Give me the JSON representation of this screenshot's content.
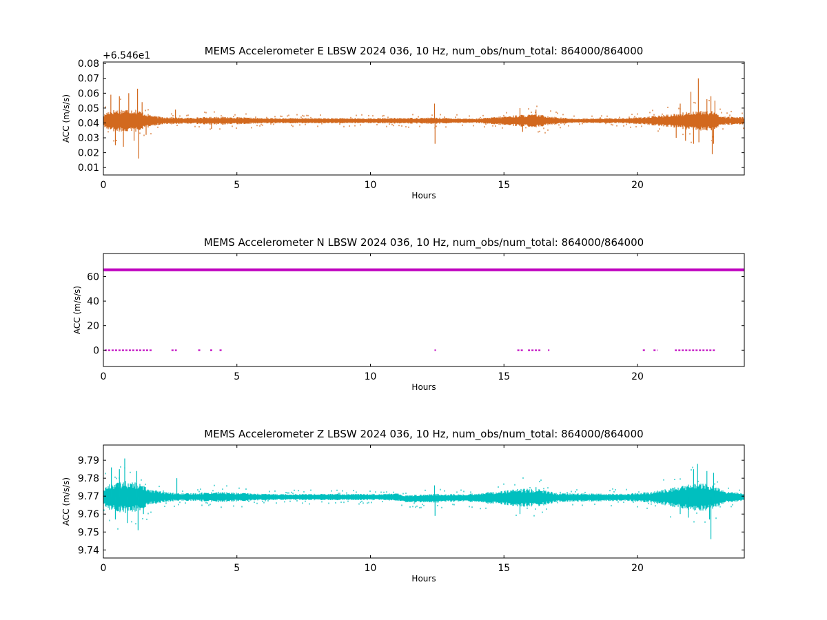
{
  "figure": {
    "background": "#ffffff"
  },
  "chart_data": [
    {
      "type": "scatter",
      "title": "MEMS Accelerometer E LBSW 2024 036, 10 Hz, num_obs/num_total: 864000/864000",
      "xlabel": "Hours",
      "ylabel": "ACC (m/s/s)",
      "offset_text": "+6.546e1",
      "xlim": [
        0,
        24
      ],
      "ylim": [
        0.005,
        0.081
      ],
      "xticks": [
        0,
        5,
        10,
        15,
        20
      ],
      "yticks": [
        0.01,
        0.02,
        0.03,
        0.04,
        0.05,
        0.06,
        0.07,
        0.08
      ],
      "color": "#d2691e",
      "series": [
        {
          "baseline": 0.0415,
          "band_halfwidth": [
            [
              0,
              0.004
            ],
            [
              0.2,
              0.007
            ],
            [
              0.6,
              0.008
            ],
            [
              1.2,
              0.008
            ],
            [
              1.6,
              0.005
            ],
            [
              2.0,
              0.003
            ],
            [
              3.0,
              0.002
            ],
            [
              4.3,
              0.0028
            ],
            [
              6.0,
              0.0018
            ],
            [
              8.0,
              0.0018
            ],
            [
              10.0,
              0.0017
            ],
            [
              12.4,
              0.0022
            ],
            [
              13.0,
              0.0018
            ],
            [
              14.0,
              0.0015
            ],
            [
              15.6,
              0.004
            ],
            [
              16.2,
              0.0045
            ],
            [
              16.8,
              0.003
            ],
            [
              17.5,
              0.0015
            ],
            [
              19.5,
              0.0018
            ],
            [
              20.5,
              0.003
            ],
            [
              21.5,
              0.005
            ],
            [
              22.2,
              0.007
            ],
            [
              22.8,
              0.0065
            ],
            [
              23.2,
              0.003
            ],
            [
              24,
              0.0025
            ]
          ],
          "spikes": [
            [
              0.28,
              0.059
            ],
            [
              0.45,
              0.025
            ],
            [
              0.6,
              0.058
            ],
            [
              0.75,
              0.024
            ],
            [
              0.95,
              0.06
            ],
            [
              1.15,
              0.028
            ],
            [
              1.28,
              0.063
            ],
            [
              1.32,
              0.016
            ],
            [
              1.45,
              0.054
            ],
            [
              1.6,
              0.032
            ],
            [
              2.7,
              0.049
            ],
            [
              4.05,
              0.036
            ],
            [
              12.4,
              0.053
            ],
            [
              12.42,
              0.026
            ],
            [
              15.6,
              0.05
            ],
            [
              15.7,
              0.034
            ],
            [
              16.2,
              0.049
            ],
            [
              21.45,
              0.03
            ],
            [
              21.6,
              0.053
            ],
            [
              21.8,
              0.028
            ],
            [
              22.0,
              0.061
            ],
            [
              22.1,
              0.026
            ],
            [
              22.28,
              0.07
            ],
            [
              22.3,
              0.027
            ],
            [
              22.6,
              0.056
            ],
            [
              22.75,
              0.058
            ],
            [
              22.8,
              0.019
            ],
            [
              22.9,
              0.055
            ],
            [
              22.85,
              0.026
            ]
          ]
        }
      ]
    },
    {
      "type": "scatter",
      "title": "MEMS Accelerometer N LBSW 2024 036, 10 Hz, num_obs/num_total: 864000/864000",
      "xlabel": "Hours",
      "ylabel": "ACC (m/s/s)",
      "xlim": [
        0,
        24
      ],
      "ylim": [
        -13.3,
        78.8
      ],
      "xticks": [
        0,
        5,
        10,
        15,
        20
      ],
      "yticks": [
        0,
        20,
        40,
        60
      ],
      "color": "#bf00bf",
      "series": [
        {
          "main_level": 65.5,
          "drop_level": 0,
          "drop_segments": [
            [
              0.05,
              1.85
            ],
            [
              2.55,
              2.75
            ],
            [
              3.55,
              3.65
            ],
            [
              4.0,
              4.1
            ],
            [
              4.35,
              4.45
            ],
            [
              12.4,
              12.45
            ],
            [
              15.5,
              15.75
            ],
            [
              15.9,
              16.4
            ],
            [
              16.65,
              16.7
            ],
            [
              20.2,
              20.3
            ],
            [
              20.6,
              20.75
            ],
            [
              21.4,
              22.9
            ]
          ]
        }
      ]
    },
    {
      "type": "scatter",
      "title": "MEMS Accelerometer Z LBSW 2024 036, 10 Hz, num_obs/num_total: 864000/864000",
      "xlabel": "Hours",
      "ylabel": "ACC (m/s/s)",
      "xlim": [
        0,
        24
      ],
      "ylim": [
        9.7355,
        9.7985
      ],
      "xticks": [
        0,
        5,
        10,
        15,
        20
      ],
      "yticks": [
        9.74,
        9.75,
        9.76,
        9.77,
        9.78,
        9.79
      ],
      "color": "#00bfbf",
      "series": [
        {
          "baseline_points": [
            [
              0,
              9.7695
            ],
            [
              11.0,
              9.7695
            ],
            [
              11.3,
              9.7685
            ],
            [
              13.0,
              9.769
            ],
            [
              24,
              9.7695
            ]
          ],
          "band_halfwidth": [
            [
              0,
              0.005
            ],
            [
              0.3,
              0.008
            ],
            [
              0.8,
              0.009
            ],
            [
              1.3,
              0.008
            ],
            [
              1.7,
              0.005
            ],
            [
              2.2,
              0.003
            ],
            [
              3.0,
              0.002
            ],
            [
              4.2,
              0.003
            ],
            [
              6.0,
              0.0018
            ],
            [
              8.0,
              0.0018
            ],
            [
              10.0,
              0.0018
            ],
            [
              12.4,
              0.0025
            ],
            [
              13.5,
              0.002
            ],
            [
              15.6,
              0.005
            ],
            [
              16.3,
              0.005
            ],
            [
              17.0,
              0.0025
            ],
            [
              19.5,
              0.002
            ],
            [
              20.5,
              0.003
            ],
            [
              21.5,
              0.006
            ],
            [
              22.2,
              0.008
            ],
            [
              22.8,
              0.007
            ],
            [
              23.3,
              0.003
            ],
            [
              24,
              0.0025
            ]
          ],
          "spikes": [
            [
              0.3,
              9.786
            ],
            [
              0.45,
              9.757
            ],
            [
              0.6,
              9.785
            ],
            [
              0.8,
              9.791
            ],
            [
              0.9,
              9.755
            ],
            [
              1.25,
              9.784
            ],
            [
              1.3,
              9.751
            ],
            [
              1.5,
              9.76
            ],
            [
              2.75,
              9.78
            ],
            [
              12.4,
              9.776
            ],
            [
              12.42,
              9.759
            ],
            [
              15.6,
              9.76
            ],
            [
              16.2,
              9.775
            ],
            [
              21.6,
              9.76
            ],
            [
              21.9,
              9.758
            ],
            [
              22.1,
              9.785
            ],
            [
              22.25,
              9.788
            ],
            [
              22.6,
              9.784
            ],
            [
              22.7,
              9.757
            ],
            [
              22.75,
              9.746
            ],
            [
              22.85,
              9.783
            ]
          ]
        }
      ]
    }
  ]
}
